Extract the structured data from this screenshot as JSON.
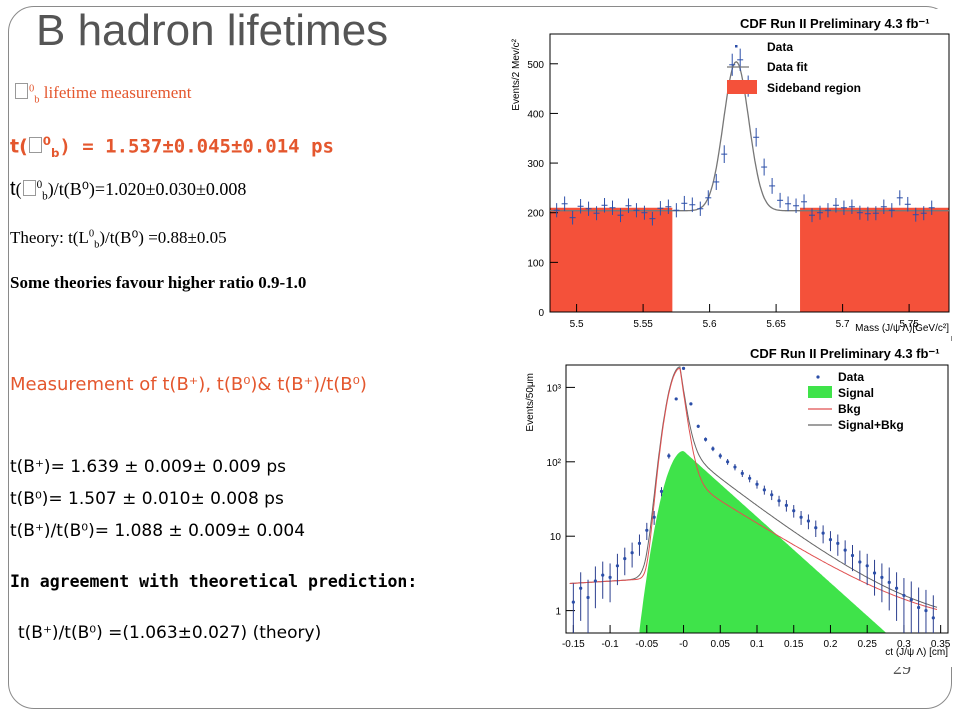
{
  "slide": {
    "title": "B hadron lifetimes",
    "page_number": "29"
  },
  "left": {
    "lambda_heading": "lifetime measurement",
    "lambda_heading_sym": "0",
    "lambda_heading_sub": "b",
    "tau_lambda_prefix": "t(",
    "tau_lambda_sup": "0",
    "tau_lambda_sub": "b",
    "tau_lambda_value": ") = 1.537±0.045±0.014 ps",
    "ratio_prefix": "t",
    "ratio_sup": "0",
    "ratio_sub": "b",
    "ratio_value": ")/t(B⁰)=1.020±0.030±0.008",
    "theory_prefix": "Theory: t(L",
    "theory_sup": "0",
    "theory_sub": "b",
    "theory_value": ")/t(B⁰) =0.88±0.05",
    "some_theories": "Some theories favour higher ratio 0.9-1.0",
    "measurement_heading": "Measurement of t(B⁺), t(B⁰)& t(B⁺)/t(B⁰)",
    "tau_bplus": "t(B⁺)= 1.639 ± 0.009± 0.009 ps",
    "tau_b0": "t(B⁰)= 1.507 ± 0.010± 0.008 ps",
    "ratio_bplus_b0": "t(B⁺)/t(B⁰)= 1.088 ± 0.009± 0.004",
    "agreement": "In agreement with theoretical prediction:",
    "prediction": "t(B⁺)/t(B⁰) =(1.063±0.027) (theory)"
  },
  "chart_data": [
    {
      "type": "line",
      "title": "CDF Run II Preliminary 4.3 fb⁻¹",
      "xlabel": "Mass (J/ψ Λ)[GeV/c²]",
      "ylabel": "Events/2 Mev/c²",
      "xlim": [
        5.48,
        5.78
      ],
      "ylim": [
        0,
        560
      ],
      "xticks": [
        "5.5",
        "5.55",
        "5.6",
        "5.65",
        "5.7",
        "5.75"
      ],
      "yticks": [
        "0",
        "100",
        "200",
        "300",
        "400",
        "500"
      ],
      "legend": [
        "Data",
        "Data fit",
        "Sideband region"
      ],
      "legend_position": "top-right",
      "sideband_regions": [
        [
          5.48,
          5.572
        ],
        [
          5.668,
          5.78
        ]
      ],
      "sideband_level": 210,
      "peak": {
        "mean": 5.62,
        "height": 300,
        "sigma": 0.0095,
        "background": 204
      },
      "series": [
        {
          "name": "Data",
          "x": [
            5.485,
            5.491,
            5.497,
            5.503,
            5.509,
            5.515,
            5.521,
            5.527,
            5.533,
            5.539,
            5.545,
            5.551,
            5.557,
            5.563,
            5.569,
            5.575,
            5.581,
            5.587,
            5.593,
            5.599,
            5.605,
            5.611,
            5.617,
            5.623,
            5.629,
            5.635,
            5.641,
            5.647,
            5.653,
            5.659,
            5.665,
            5.671,
            5.677,
            5.683,
            5.689,
            5.695,
            5.701,
            5.707,
            5.713,
            5.719,
            5.725,
            5.731,
            5.737,
            5.743,
            5.749,
            5.755,
            5.761,
            5.767
          ],
          "y": [
            205,
            218,
            190,
            213,
            208,
            199,
            215,
            210,
            195,
            214,
            205,
            200,
            188,
            209,
            212,
            205,
            219,
            216,
            208,
            230,
            262,
            318,
            498,
            508,
            455,
            352,
            292,
            254,
            225,
            218,
            214,
            222,
            195,
            200,
            205,
            215,
            210,
            212,
            200,
            198,
            199,
            212,
            205,
            230,
            217,
            196,
            199,
            210
          ]
        }
      ]
    },
    {
      "type": "line",
      "title": "CDF Run II Preliminary 4.3 fb⁻¹",
      "xlabel": "ct (J/ψ Λ) [cm]",
      "ylabel": "Events/50μm",
      "log_y": true,
      "xlim": [
        -0.16,
        0.36
      ],
      "ylim": [
        0.5,
        2000
      ],
      "xticks": [
        "-0.15",
        "-0.1",
        "-0.05",
        "-0",
        "0.05",
        "0.1",
        "0.15",
        "0.2",
        "0.25",
        "0.3",
        "0.35"
      ],
      "yticks": [
        "1",
        "10",
        "10²",
        "10³"
      ],
      "legend": [
        "Data",
        "Signal",
        "Bkg",
        "Signal+Bkg"
      ],
      "legend_position": "top-right",
      "series": [
        {
          "name": "Data",
          "x": [
            -0.15,
            -0.14,
            -0.13,
            -0.12,
            -0.11,
            -0.1,
            -0.09,
            -0.08,
            -0.07,
            -0.06,
            -0.05,
            -0.04,
            -0.03,
            -0.02,
            -0.01,
            0,
            0.01,
            0.02,
            0.03,
            0.04,
            0.05,
            0.06,
            0.07,
            0.08,
            0.09,
            0.1,
            0.11,
            0.12,
            0.13,
            0.14,
            0.15,
            0.16,
            0.17,
            0.18,
            0.19,
            0.2,
            0.21,
            0.22,
            0.23,
            0.24,
            0.25,
            0.26,
            0.27,
            0.28,
            0.29,
            0.3,
            0.31,
            0.32,
            0.33,
            0.34
          ],
          "y": [
            1.3,
            2,
            1.5,
            2.5,
            3,
            2.8,
            4,
            5,
            6,
            8,
            12,
            18,
            40,
            120,
            700,
            1800,
            600,
            300,
            200,
            150,
            120,
            100,
            85,
            70,
            60,
            50,
            42,
            36,
            30,
            26,
            22,
            18,
            16,
            13,
            11,
            9,
            8,
            6.5,
            5.5,
            4.5,
            4,
            3.2,
            2.8,
            2.4,
            2,
            1.6,
            1.4,
            1.1,
            1,
            0.8
          ]
        },
        {
          "name": "Signal",
          "peak_x": 0.0,
          "peak_y": 140,
          "decay_length": 0.049
        },
        {
          "name": "Bkg",
          "peak_x": -0.005,
          "peak_y": 1800
        },
        {
          "name": "Signal+Bkg",
          "peak_x": -0.005,
          "peak_y": 1850
        }
      ]
    }
  ]
}
